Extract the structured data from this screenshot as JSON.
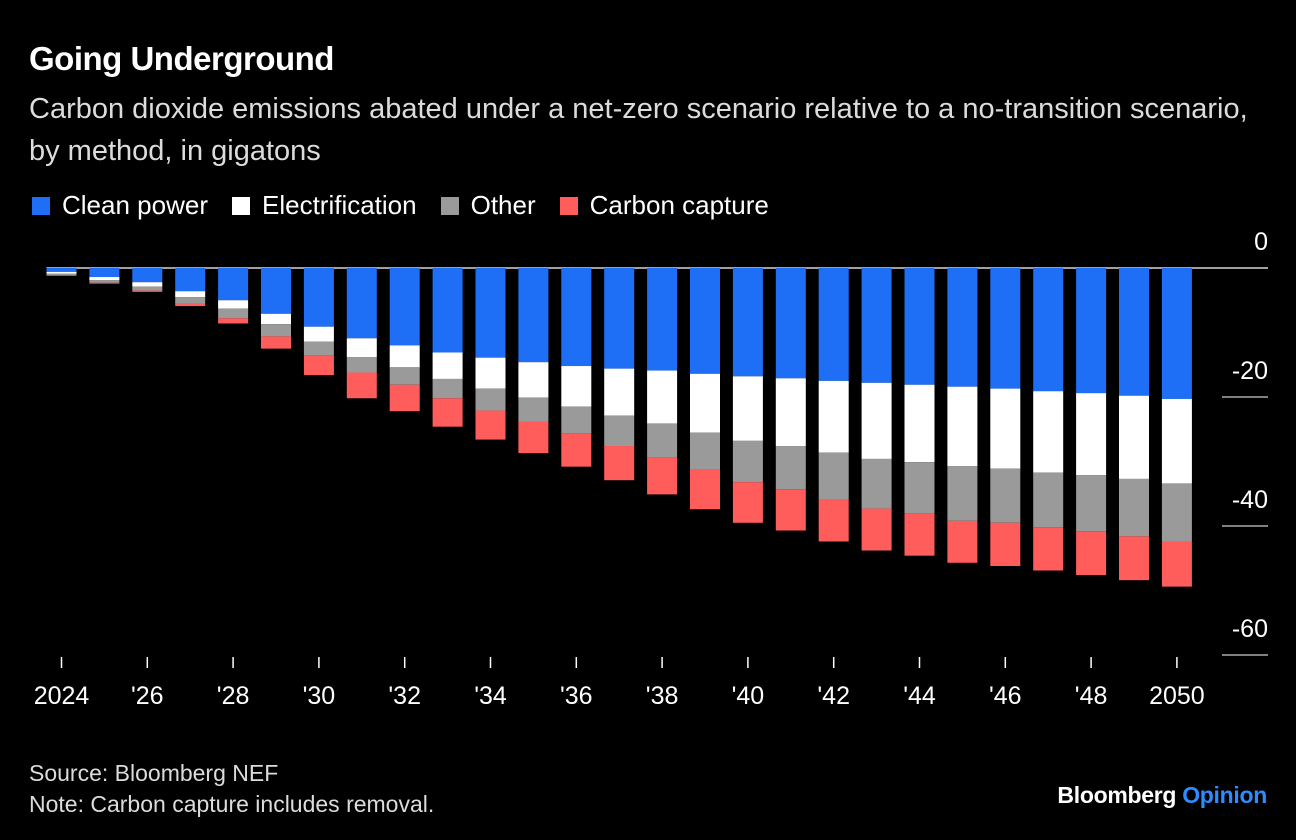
{
  "header": {
    "title": "Going Underground",
    "subtitle": "Carbon dioxide emissions abated under a net-zero scenario relative to a no-transition scenario, by method, in gigatons"
  },
  "legend": [
    {
      "label": "Clean power",
      "color": "#1e6ff5"
    },
    {
      "label": "Electrification",
      "color": "#ffffff"
    },
    {
      "label": "Other",
      "color": "#9a9a9a"
    },
    {
      "label": "Carbon capture",
      "color": "#ff5c5c"
    }
  ],
  "footer": {
    "source": "Source: Bloomberg NEF",
    "note": "Note: Carbon capture includes removal.",
    "brand_main": "Bloomberg",
    "brand_accent": "Opinion",
    "brand_accent_color": "#2d8cff"
  },
  "chart_data": {
    "type": "bar",
    "stacked": true,
    "x": [
      2024,
      2025,
      2026,
      2027,
      2028,
      2029,
      2030,
      2031,
      2032,
      2033,
      2034,
      2035,
      2036,
      2037,
      2038,
      2039,
      2040,
      2041,
      2042,
      2043,
      2044,
      2045,
      2046,
      2047,
      2048,
      2049,
      2050
    ],
    "x_tick_labels": [
      "2024",
      "'26",
      "'28",
      "'30",
      "'32",
      "'34",
      "'36",
      "'38",
      "'40",
      "'42",
      "'44",
      "'46",
      "'48",
      "2050"
    ],
    "x_tick_years": [
      2024,
      2026,
      2028,
      2030,
      2032,
      2034,
      2036,
      2038,
      2040,
      2042,
      2044,
      2046,
      2048,
      2050
    ],
    "ylim": [
      -60,
      0
    ],
    "y_ticks": [
      0,
      -20,
      -40,
      -60
    ],
    "y_tick_labels": [
      "0",
      "-20",
      "-40",
      "-60"
    ],
    "series": [
      {
        "name": "Clean power",
        "color": "#1e6ff5",
        "values": [
          -0.6,
          -1.4,
          -2.2,
          -3.6,
          -5.0,
          -7.1,
          -9.1,
          -10.9,
          -12.0,
          -13.1,
          -13.9,
          -14.6,
          -15.2,
          -15.6,
          -15.9,
          -16.4,
          -16.8,
          -17.1,
          -17.5,
          -17.8,
          -18.1,
          -18.4,
          -18.7,
          -19.1,
          -19.4,
          -19.8,
          -20.3
        ]
      },
      {
        "name": "Electrification",
        "color": "#ffffff",
        "values": [
          -0.3,
          -0.5,
          -0.7,
          -0.9,
          -1.3,
          -1.6,
          -2.3,
          -2.9,
          -3.4,
          -4.1,
          -4.8,
          -5.5,
          -6.3,
          -7.3,
          -8.2,
          -9.1,
          -10.0,
          -10.5,
          -11.1,
          -11.8,
          -12.0,
          -12.3,
          -12.4,
          -12.6,
          -12.7,
          -12.9,
          -13.1
        ]
      },
      {
        "name": "Other",
        "color": "#9a9a9a",
        "values": [
          -0.3,
          -0.4,
          -0.6,
          -1.0,
          -1.5,
          -1.9,
          -2.2,
          -2.4,
          -2.7,
          -3.0,
          -3.4,
          -3.7,
          -4.2,
          -4.7,
          -5.3,
          -5.8,
          -6.4,
          -6.7,
          -7.3,
          -7.7,
          -8.0,
          -8.5,
          -8.4,
          -8.5,
          -8.7,
          -8.9,
          -9.0
        ]
      },
      {
        "name": "Carbon capture",
        "color": "#ff5c5c",
        "values": [
          0,
          -0.1,
          -0.2,
          -0.4,
          -0.8,
          -1.9,
          -3.0,
          -4.0,
          -4.1,
          -4.4,
          -4.5,
          -4.9,
          -5.1,
          -5.3,
          -5.7,
          -6.1,
          -6.3,
          -6.4,
          -6.5,
          -6.5,
          -6.5,
          -6.5,
          -6.7,
          -6.7,
          -6.8,
          -6.8,
          -7.0
        ]
      }
    ]
  }
}
